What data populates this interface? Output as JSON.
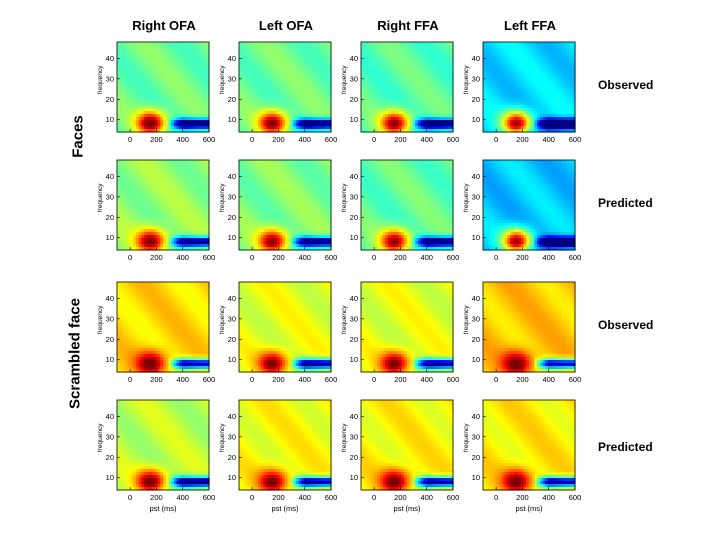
{
  "columns": [
    "Right OFA",
    "Left OFA",
    "Right FFA",
    "Left FFA"
  ],
  "rows": [
    {
      "label": "Observed",
      "condition": "Faces"
    },
    {
      "label": "Predicted",
      "condition": "Faces"
    },
    {
      "label": "Observed",
      "condition": "Scrambled face"
    },
    {
      "label": "Predicted",
      "condition": "Scrambled face"
    }
  ],
  "conditions": [
    "Faces",
    "Scrambled face"
  ],
  "axes": {
    "ylabel": "frequency",
    "xlabel": "pst (ms)",
    "xticks": [
      "0",
      "200",
      "400",
      "600"
    ],
    "yticks": [
      "10",
      "20",
      "30",
      "40"
    ],
    "xlim": [
      -100,
      600
    ],
    "ylim": [
      4,
      48
    ]
  },
  "chart_data": {
    "type": "heatmap",
    "title": "",
    "xlabel": "pst (ms)",
    "ylabel": "frequency",
    "xlim": [
      -100,
      600
    ],
    "ylim": [
      4,
      48
    ],
    "colormap": [
      "#00008f",
      "#0000ff",
      "#00ffff",
      "#ffff00",
      "#ff0000",
      "#800000"
    ],
    "panels": [
      {
        "row": 0,
        "col": 0,
        "condition": "Faces",
        "type": "Observed",
        "region": "Right OFA",
        "base": 0.48,
        "blob": 0.95,
        "blue": 0.85
      },
      {
        "row": 0,
        "col": 1,
        "condition": "Faces",
        "type": "Observed",
        "region": "Left OFA",
        "base": 0.48,
        "blob": 0.92,
        "blue": 0.85
      },
      {
        "row": 0,
        "col": 2,
        "condition": "Faces",
        "type": "Observed",
        "region": "Right FFA",
        "base": 0.46,
        "blob": 0.9,
        "blue": 0.85
      },
      {
        "row": 0,
        "col": 3,
        "condition": "Faces",
        "type": "Observed",
        "region": "Left FFA",
        "base": 0.34,
        "blob": 0.88,
        "blue": 0.9
      },
      {
        "row": 1,
        "col": 0,
        "condition": "Faces",
        "type": "Predicted",
        "region": "Right OFA",
        "base": 0.52,
        "blob": 0.93,
        "blue": 0.8
      },
      {
        "row": 1,
        "col": 1,
        "condition": "Faces",
        "type": "Predicted",
        "region": "Left OFA",
        "base": 0.5,
        "blob": 0.9,
        "blue": 0.8
      },
      {
        "row": 1,
        "col": 2,
        "condition": "Faces",
        "type": "Predicted",
        "region": "Right FFA",
        "base": 0.47,
        "blob": 0.9,
        "blue": 0.8
      },
      {
        "row": 1,
        "col": 3,
        "condition": "Faces",
        "type": "Predicted",
        "region": "Left FFA",
        "base": 0.32,
        "blob": 0.88,
        "blue": 0.85
      },
      {
        "row": 2,
        "col": 0,
        "condition": "Scrambled face",
        "type": "Observed",
        "region": "Right OFA",
        "base": 0.66,
        "blob": 0.97,
        "blue": 0.9
      },
      {
        "row": 2,
        "col": 1,
        "condition": "Scrambled face",
        "type": "Observed",
        "region": "Left OFA",
        "base": 0.6,
        "blob": 0.93,
        "blue": 0.88
      },
      {
        "row": 2,
        "col": 2,
        "condition": "Scrambled face",
        "type": "Observed",
        "region": "Right FFA",
        "base": 0.6,
        "blob": 0.93,
        "blue": 0.88
      },
      {
        "row": 2,
        "col": 3,
        "condition": "Scrambled face",
        "type": "Observed",
        "region": "Left FFA",
        "base": 0.68,
        "blob": 0.97,
        "blue": 0.9
      },
      {
        "row": 3,
        "col": 0,
        "condition": "Scrambled face",
        "type": "Predicted",
        "region": "Right OFA",
        "base": 0.56,
        "blob": 0.95,
        "blue": 0.9
      },
      {
        "row": 3,
        "col": 1,
        "condition": "Scrambled face",
        "type": "Predicted",
        "region": "Left OFA",
        "base": 0.62,
        "blob": 0.93,
        "blue": 0.88
      },
      {
        "row": 3,
        "col": 2,
        "condition": "Scrambled face",
        "type": "Predicted",
        "region": "Right FFA",
        "base": 0.63,
        "blob": 0.95,
        "blue": 0.9
      },
      {
        "row": 3,
        "col": 3,
        "condition": "Scrambled face",
        "type": "Predicted",
        "region": "Left FFA",
        "base": 0.64,
        "blob": 0.96,
        "blue": 0.9
      }
    ]
  }
}
